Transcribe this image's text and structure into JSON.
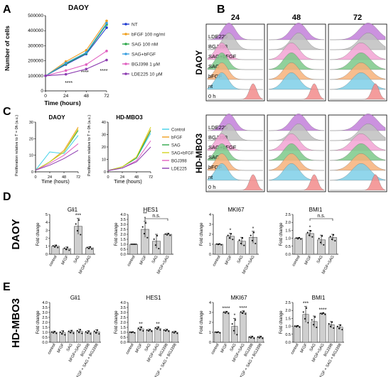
{
  "panels": {
    "A": {
      "letter": "A",
      "title": "DAOY",
      "xlabel": "Time (hours)",
      "ylabel": "Number of cells",
      "legend": [
        "NT",
        "bFGF 100 ng/ml",
        "SAG 100 nM",
        "SAG+bFGF",
        "BGJ398 1 μM",
        "LDE225 10 μM"
      ],
      "sig_labels": [
        "****",
        "****",
        "****"
      ]
    },
    "B": {
      "letter": "B",
      "timepoints": [
        "24",
        "48",
        "72"
      ],
      "groups": [
        {
          "name": "DAOY",
          "rows": [
            "LDE225",
            "BGJ398",
            "SAG+bFGF",
            "SAG",
            "bFGF",
            "nt",
            "0 h"
          ]
        },
        {
          "name": "HD-MBO3",
          "rows": [
            "LDE225",
            "BGJ398",
            "SAG+bFGF",
            "SAG",
            "bFGF",
            "nt",
            "0 h"
          ]
        }
      ],
      "colors": [
        "#c27fd9",
        "#bfbfbf",
        "#f2a3d3",
        "#7dc98a",
        "#f7b27a",
        "#7ecfe8",
        "#f28b8b"
      ]
    },
    "C": {
      "letter": "C",
      "ylabel": "Proliferation relative to T = 0h (a.u.)",
      "xlabel": "Time (hours)",
      "legend": [
        "Control",
        "bFGF",
        "SAG",
        "SAG+bFGF",
        "BGJ398",
        "LDE225"
      ]
    },
    "D": {
      "letter": "D",
      "rowlabel": "DAOY",
      "ylabel": "Fold change",
      "ns": "n.s."
    },
    "E": {
      "letter": "E",
      "rowlabel": "HD-MBO3",
      "ylabel": "Fold change"
    }
  },
  "chart_data": [
    {
      "panel": "A",
      "type": "line",
      "title": "DAOY",
      "xlabel": "Time (hours)",
      "ylabel": "Number of cells",
      "x": [
        0,
        24,
        48,
        72
      ],
      "xlim": [
        0,
        72
      ],
      "ylim": [
        0,
        500000
      ],
      "xticks": [
        0,
        24,
        48,
        72
      ],
      "yticks": [
        0,
        100000,
        200000,
        300000,
        400000,
        500000
      ],
      "ytick_labels": [
        "0",
        "100000",
        "200000",
        "300000",
        "400000",
        "500000"
      ],
      "series": [
        {
          "name": "NT",
          "color": "#1f3bd1",
          "values": [
            100000,
            175000,
            245000,
            420000
          ]
        },
        {
          "name": "bFGF 100 ng/ml",
          "color": "#f0a020",
          "values": [
            100000,
            195000,
            270000,
            465000
          ]
        },
        {
          "name": "SAG 100 nM",
          "color": "#2ea84a",
          "values": [
            100000,
            180000,
            250000,
            440000
          ]
        },
        {
          "name": "SAG+bFGF",
          "color": "#3a9fe0",
          "values": [
            100000,
            185000,
            255000,
            450000
          ]
        },
        {
          "name": "BGJ398 1 μM",
          "color": "#e060c0",
          "values": [
            100000,
            135000,
            175000,
            265000
          ]
        },
        {
          "name": "LDE225 10 μM",
          "color": "#8b3ab0",
          "values": [
            100000,
            110000,
            145000,
            205000
          ]
        }
      ]
    },
    {
      "panel": "C",
      "type": "line",
      "title": "DAOY",
      "xlabel": "Time (hours)",
      "ylabel": "Proliferation relative to T = 0h (a.u.)",
      "x": [
        0,
        24,
        48,
        72
      ],
      "xlim": [
        0,
        72
      ],
      "ylim": [
        0,
        30
      ],
      "yticks": [
        0,
        10,
        20,
        30
      ],
      "xticks": [
        0,
        24,
        48,
        72
      ],
      "series": [
        {
          "name": "Control",
          "color": "#3fd0e8",
          "values": [
            1,
            12,
            11,
            22
          ]
        },
        {
          "name": "bFGF",
          "color": "#f0a020",
          "values": [
            1,
            6,
            13,
            27
          ]
        },
        {
          "name": "SAG",
          "color": "#2ea84a",
          "values": [
            1,
            6,
            12,
            25
          ]
        },
        {
          "name": "SAG+bFGF",
          "color": "#d4d420",
          "values": [
            1,
            6,
            12,
            26
          ]
        },
        {
          "name": "BGJ398",
          "color": "#e060c0",
          "values": [
            1,
            5,
            10,
            17
          ]
        },
        {
          "name": "LDE225",
          "color": "#8b3ab0",
          "values": [
            1,
            4,
            8,
            13
          ]
        }
      ]
    },
    {
      "panel": "C",
      "type": "line",
      "title": "HD-MBO3",
      "xlabel": "Time (hours)",
      "ylabel": "Proliferation relative to T = 0h (a.u.)",
      "x": [
        0,
        24,
        48,
        72
      ],
      "xlim": [
        0,
        72
      ],
      "ylim": [
        0,
        40
      ],
      "yticks": [
        0,
        10,
        20,
        30,
        40
      ],
      "xticks": [
        0,
        24,
        48,
        72
      ],
      "series": [
        {
          "name": "Control",
          "color": "#3fd0e8",
          "values": [
            1,
            4,
            11,
            31
          ]
        },
        {
          "name": "bFGF",
          "color": "#f0a020",
          "values": [
            1,
            4,
            12,
            34
          ]
        },
        {
          "name": "SAG",
          "color": "#2ea84a",
          "values": [
            1,
            4,
            11,
            33
          ]
        },
        {
          "name": "SAG+bFGF",
          "color": "#d4d420",
          "values": [
            1,
            4,
            12,
            36
          ]
        },
        {
          "name": "BGJ398",
          "color": "#e060c0",
          "values": [
            1,
            3,
            9,
            25
          ]
        },
        {
          "name": "LDE225",
          "color": "#8b3ab0",
          "values": [
            1,
            3,
            8,
            20
          ]
        }
      ]
    },
    {
      "panel": "D",
      "type": "bar",
      "title": "Gli1",
      "ylabel": "Fold change",
      "categories": [
        "control",
        "bFGF",
        "SAG",
        "bFGF+SAG"
      ],
      "values": [
        1.0,
        0.7,
        3.5,
        0.8
      ],
      "errors": [
        0.15,
        0.2,
        1.0,
        0.15
      ],
      "ylim": [
        0,
        5
      ],
      "yticks": [
        0,
        1,
        2,
        3,
        4,
        5
      ],
      "annotations": [
        {
          "category": "SAG",
          "text": "***"
        }
      ]
    },
    {
      "panel": "D",
      "type": "bar",
      "title": "HES1",
      "ylabel": "Fold change",
      "categories": [
        "control",
        "bFGF",
        "SAG",
        "bFGF+SAG"
      ],
      "values": [
        1.0,
        2.5,
        1.3,
        2.0
      ],
      "errors": [
        0.0,
        0.8,
        0.7,
        0.1
      ],
      "ylim": [
        0,
        4
      ],
      "yticks": [
        0.0,
        0.5,
        1.0,
        1.5,
        2.0,
        2.5,
        3.0,
        3.5,
        4.0
      ],
      "annotations": [
        {
          "category": "bFGF",
          "text": "*"
        },
        {
          "category": "bFGF",
          "text": "**"
        },
        {
          "bracket": [
            "bFGF",
            "bFGF+SAG"
          ],
          "text": "n.s."
        }
      ]
    },
    {
      "panel": "D",
      "type": "bar",
      "title": "MKI67",
      "ylabel": "Fold change",
      "categories": [
        "control",
        "bFGF",
        "SAG",
        "bFGF+SAG"
      ],
      "values": [
        1.0,
        1.8,
        1.3,
        1.7
      ],
      "errors": [
        0.05,
        0.3,
        0.4,
        0.6
      ],
      "ylim": [
        0,
        4
      ],
      "yticks": [
        0,
        1,
        2,
        3,
        4
      ],
      "annotations": [
        {
          "category": "bFGF",
          "text": "*"
        },
        {
          "category": "bFGF+SAG",
          "text": "*"
        }
      ]
    },
    {
      "panel": "D",
      "type": "bar",
      "title": "BMI1",
      "ylabel": "Fold change",
      "categories": [
        "control",
        "bFGF",
        "SAG",
        "bFGF+SAG"
      ],
      "values": [
        1.0,
        1.3,
        0.9,
        1.05
      ],
      "errors": [
        0.05,
        0.2,
        0.3,
        0.2
      ],
      "ylim": [
        0,
        2.5
      ],
      "yticks": [
        0.0,
        0.5,
        1.0,
        1.5,
        2.0,
        2.5
      ],
      "annotations": [
        {
          "category": "bFGF",
          "text": "*"
        },
        {
          "bracket": [
            "bFGF",
            "bFGF+SAG"
          ],
          "text": "n.s."
        }
      ]
    },
    {
      "panel": "E",
      "type": "bar",
      "title": "Gli1",
      "ylabel": "Fold change",
      "categories": [
        "control",
        "bFGF",
        "SAG",
        "bFGF+SAG",
        "BGJ398",
        "bFGF + SAG + BGJ398"
      ],
      "values": [
        1.0,
        0.95,
        1.05,
        1.1,
        1.0,
        1.05
      ],
      "errors": [
        0.1,
        0.2,
        0.15,
        0.2,
        0.15,
        0.2
      ],
      "ylim": [
        0,
        4.0
      ],
      "yticks": [
        0.0,
        0.5,
        1.0,
        1.5,
        2.0,
        2.5,
        3.0,
        3.5,
        4.0
      ]
    },
    {
      "panel": "E",
      "type": "bar",
      "title": "HES1",
      "ylabel": "Fold change",
      "categories": [
        "control",
        "bFGF",
        "SAG",
        "bFGF+SAG",
        "BGJ398",
        "bFGF + SAG + BGJ398"
      ],
      "values": [
        1.0,
        1.35,
        1.2,
        1.4,
        1.2,
        1.0
      ],
      "errors": [
        0.05,
        0.2,
        0.1,
        0.15,
        0.1,
        0.1
      ],
      "ylim": [
        0,
        4.0
      ],
      "yticks": [
        0.0,
        0.5,
        1.0,
        1.5,
        2.0,
        2.5,
        3.0,
        3.5,
        4.0
      ],
      "annotations": [
        {
          "category": "bFGF",
          "text": "**"
        },
        {
          "category": "bFGF+SAG",
          "text": "**"
        }
      ]
    },
    {
      "panel": "E",
      "type": "bar",
      "title": "MKI67",
      "ylabel": "Fold change",
      "categories": [
        "control",
        "bFGF",
        "SAG",
        "bFGF+SAG",
        "BGJ398",
        "bFGF + SAG + BGJ398"
      ],
      "values": [
        1.0,
        3.0,
        1.6,
        3.0,
        0.5,
        0.5
      ],
      "errors": [
        0.05,
        0.1,
        0.8,
        0.15,
        0.1,
        0.1
      ],
      "ylim": [
        0,
        4
      ],
      "yticks": [
        0,
        1,
        2,
        3,
        4
      ],
      "annotations": [
        {
          "category": "bFGF",
          "text": "****"
        },
        {
          "category": "SAG",
          "text": "*"
        },
        {
          "category": "bFGF+SAG",
          "text": "****"
        }
      ]
    },
    {
      "panel": "E",
      "type": "bar",
      "title": "BMI1",
      "ylabel": "Fold change",
      "categories": [
        "control",
        "bFGF",
        "SAG",
        "bFGF+SAG",
        "BGJ398",
        "bFGF + SAG + BGJ398"
      ],
      "values": [
        1.0,
        1.75,
        1.3,
        1.8,
        1.1,
        0.95
      ],
      "errors": [
        0.05,
        0.5,
        0.35,
        0.05,
        0.2,
        0.15
      ],
      "ylim": [
        0,
        2.5
      ],
      "yticks": [
        0.0,
        0.5,
        1.0,
        1.5,
        2.0,
        2.5
      ],
      "annotations": [
        {
          "category": "bFGF",
          "text": "***"
        },
        {
          "category": "bFGF+SAG",
          "text": "****"
        }
      ]
    }
  ]
}
